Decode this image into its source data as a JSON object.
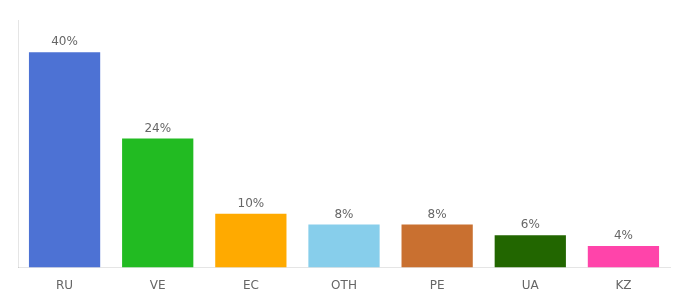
{
  "chart_data": {
    "type": "bar",
    "categories": [
      "RU",
      "VE",
      "EC",
      "OTH",
      "PE",
      "UA",
      "KZ"
    ],
    "values": [
      40,
      24,
      10,
      8,
      8,
      6,
      4
    ],
    "value_labels": [
      "40%",
      "24%",
      "10%",
      "8%",
      "8%",
      "6%",
      "4%"
    ],
    "colors": [
      "#4d72d4",
      "#22bb22",
      "#ffaa00",
      "#87ceeb",
      "#c97030",
      "#226600",
      "#ff44aa"
    ],
    "ylim": [
      0,
      46
    ],
    "grid": false,
    "data_labels": true,
    "tick_labels": "x"
  }
}
